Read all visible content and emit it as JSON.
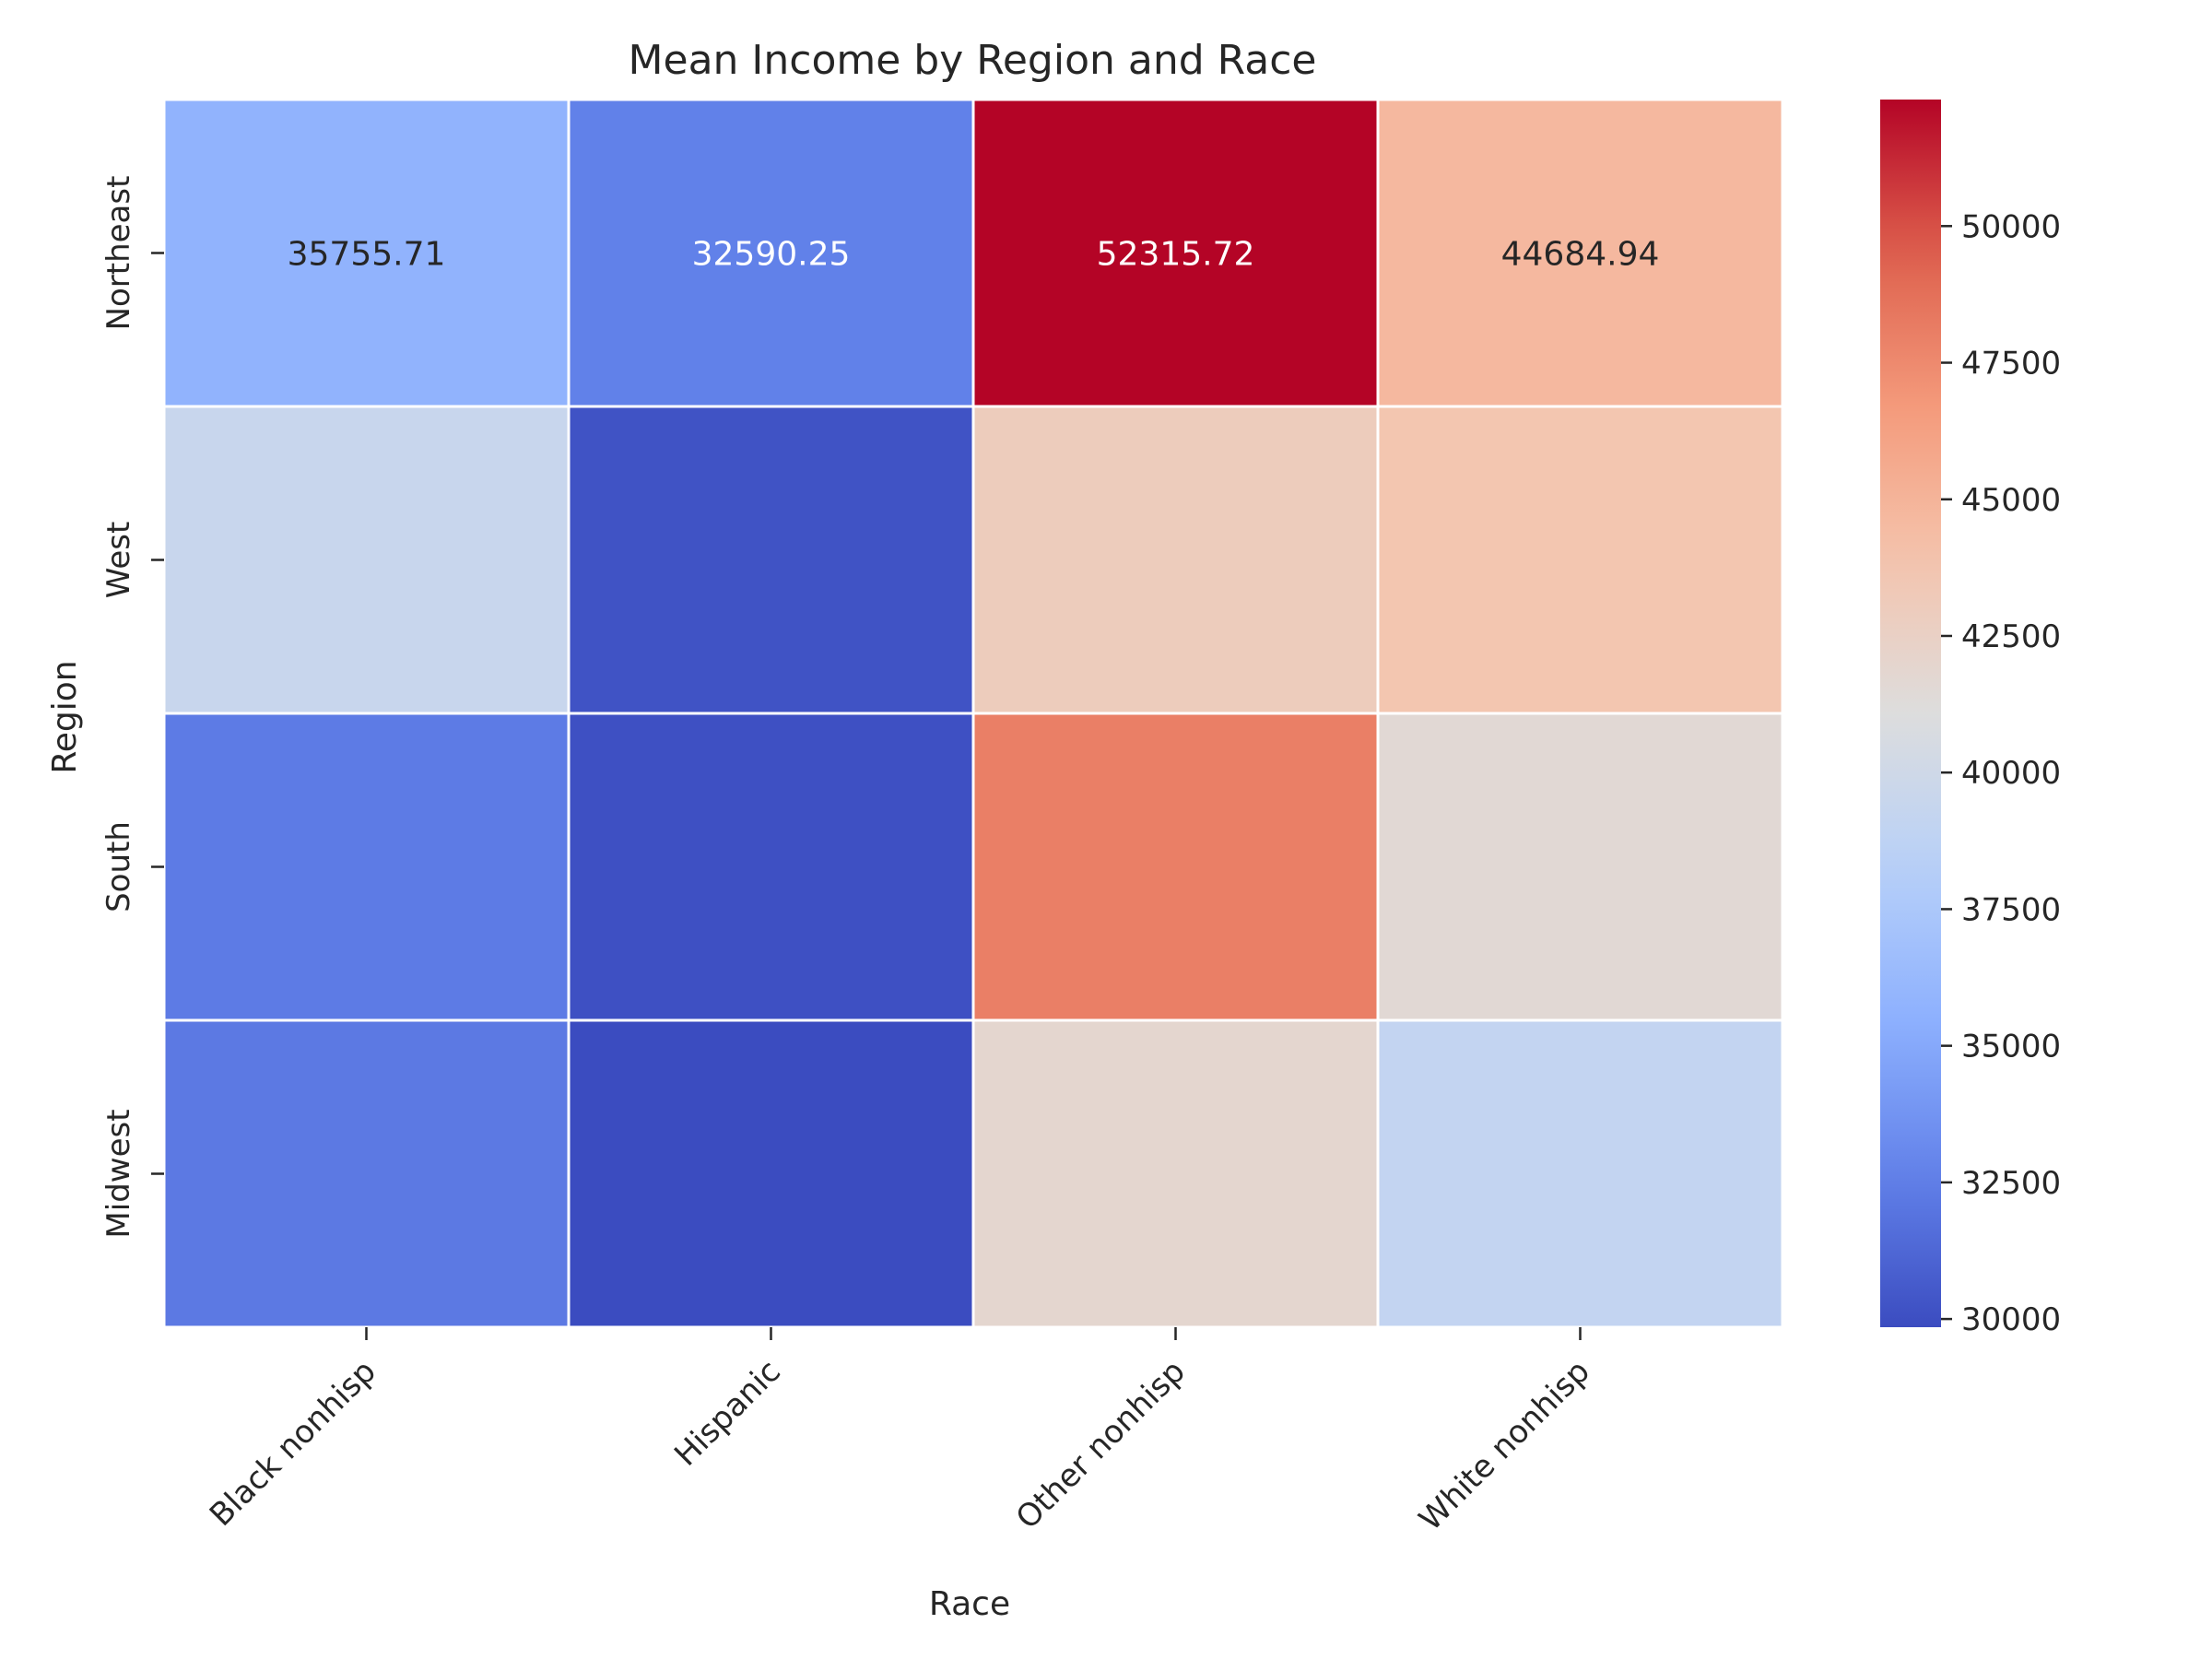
{
  "chart_data": {
    "type": "heatmap",
    "title": "Mean Income by Region and Race",
    "xlabel": "Race",
    "ylabel": "Region",
    "x_categories": [
      "Black nonhisp",
      "Hispanic",
      "Other nonhisp",
      "White nonhisp"
    ],
    "y_categories": [
      "Northeast",
      "West",
      "South",
      "Midwest"
    ],
    "values": [
      [
        35755.71,
        32590.25,
        52315.72,
        44684.94
      ],
      [
        39500,
        30200,
        43000,
        43700
      ],
      [
        32300,
        30050,
        48000,
        41600
      ],
      [
        32200,
        29850,
        41900,
        39100
      ]
    ],
    "annotations": [
      [
        "35755.71",
        "32590.25",
        "52315.72",
        "44684.94"
      ],
      [
        "",
        "",
        "",
        ""
      ],
      [
        "",
        "",
        "",
        ""
      ],
      [
        "",
        "",
        "",
        ""
      ]
    ],
    "colormap": "coolwarm",
    "color_range": [
      29850,
      52315.72
    ],
    "colorbar_ticks": [
      30000,
      32500,
      35000,
      37500,
      40000,
      42500,
      45000,
      47500,
      50000
    ],
    "colorbar_tick_labels": [
      "30000",
      "32500",
      "35000",
      "37500",
      "40000",
      "42500",
      "45000",
      "47500",
      "50000"
    ],
    "grid_line_color": "#ffffff"
  }
}
